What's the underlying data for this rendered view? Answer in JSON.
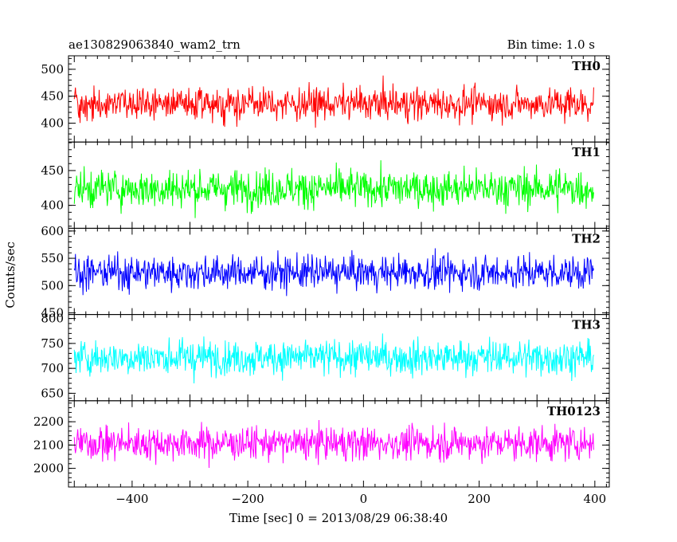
{
  "chart_data": {
    "type": "line",
    "title": "ae130829063840_wam2_trn",
    "subtitle": "Bin time: 1.0 s",
    "xlabel": "Time [sec] 0 = 2013/08/29 06:38:40",
    "ylabel": "Counts/sec",
    "xlim": [
      -510,
      425
    ],
    "xticks": [
      -400,
      -200,
      0,
      200,
      400
    ],
    "xtick_labels": [
      "−400",
      "−200",
      "0",
      "200",
      "400"
    ],
    "grid": false,
    "panels": [
      {
        "name": "TH0",
        "color": "#ff0000",
        "ylim": [
          365,
          525
        ],
        "yticks": [
          400,
          450,
          500
        ],
        "mean": 436,
        "amplitude": 26,
        "x_start": -500,
        "x_end": 398
      },
      {
        "name": "TH1",
        "color": "#00ff00",
        "ylim": [
          367,
          491
        ],
        "yticks": [
          400,
          450
        ],
        "mean": 424,
        "amplitude": 23,
        "x_start": -500,
        "x_end": 398
      },
      {
        "name": "TH2",
        "color": "#0000ff",
        "ylim": [
          447,
          605
        ],
        "yticks": [
          450,
          500,
          550,
          600
        ],
        "mean": 524,
        "amplitude": 26,
        "x_start": -500,
        "x_end": 398
      },
      {
        "name": "TH3",
        "color": "#00ffff",
        "ylim": [
          635,
          808
        ],
        "yticks": [
          650,
          700,
          750,
          800
        ],
        "mean": 722,
        "amplitude": 30,
        "x_start": -500,
        "x_end": 398
      },
      {
        "name": "TH0123",
        "color": "#ff00ff",
        "ylim": [
          1920,
          2290
        ],
        "yticks": [
          2000,
          2100,
          2200
        ],
        "mean": 2108,
        "amplitude": 60,
        "x_start": -500,
        "x_end": 398
      }
    ]
  }
}
